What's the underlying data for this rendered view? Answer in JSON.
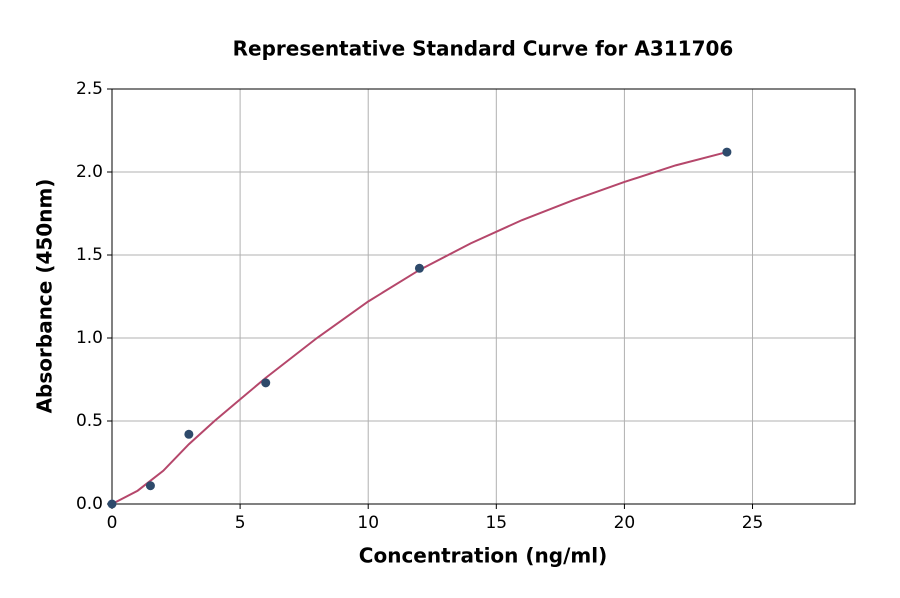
{
  "chart_data": {
    "type": "scatter",
    "title": "Representative Standard Curve for A311706",
    "x_label": "Concentration (ng/ml)",
    "y_label": "Absorbance (450nm)",
    "xlim": [
      0,
      29
    ],
    "xticks": [
      0,
      5,
      10,
      15,
      20,
      25
    ],
    "ylim": [
      0,
      2.5
    ],
    "yticks": [
      {
        "value": 0,
        "label": "0.0"
      },
      0.5,
      {
        "value": 1,
        "label": "1.0"
      },
      1.5,
      {
        "value": 2,
        "label": "2.0"
      },
      2.5
    ],
    "grid": true,
    "series": [
      {
        "type": "line",
        "color": "#b5476b",
        "x": [
          0,
          1,
          2,
          3,
          4,
          5,
          6,
          8,
          10,
          12,
          14,
          16,
          18,
          20,
          22,
          24
        ],
        "values": [
          0,
          0.08,
          0.2,
          0.36,
          0.5,
          0.63,
          0.76,
          1.0,
          1.22,
          1.41,
          1.57,
          1.71,
          1.83,
          1.94,
          2.04,
          2.12
        ]
      },
      {
        "type": "scatter",
        "color": "#2e4a6b",
        "x": [
          0,
          1.5,
          3,
          6,
          12,
          24
        ],
        "values": [
          0,
          0.11,
          0.42,
          0.73,
          1.42,
          2.12
        ]
      }
    ]
  }
}
